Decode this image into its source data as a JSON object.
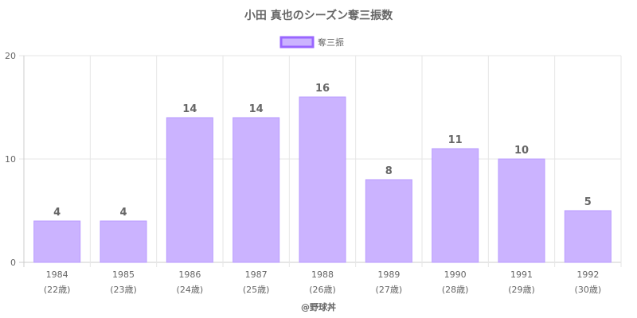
{
  "colors": {
    "bar_fill": "#cbb3ff",
    "bar_stroke": "#b99bff",
    "legend_stroke": "#9966ff",
    "grid": "#e6e6e6",
    "axis": "#cccccc",
    "text": "#666666"
  },
  "credit": "@野球丼",
  "chart_data": {
    "type": "bar",
    "title": "小田 真也のシーズン奪三振数",
    "categories": [
      "1984",
      "1985",
      "1986",
      "1987",
      "1988",
      "1989",
      "1990",
      "1991",
      "1992"
    ],
    "category_sublabels": [
      "(22歳)",
      "(23歳)",
      "(24歳)",
      "(25歳)",
      "(26歳)",
      "(27歳)",
      "(28歳)",
      "(29歳)",
      "(30歳)"
    ],
    "series": [
      {
        "name": "奪三振",
        "values": [
          4,
          4,
          14,
          14,
          16,
          8,
          11,
          10,
          5
        ]
      }
    ],
    "ylim": [
      0,
      20
    ],
    "yticks": [
      0,
      10,
      20
    ],
    "grid": true,
    "legend": "top-center",
    "data_labels": true
  }
}
